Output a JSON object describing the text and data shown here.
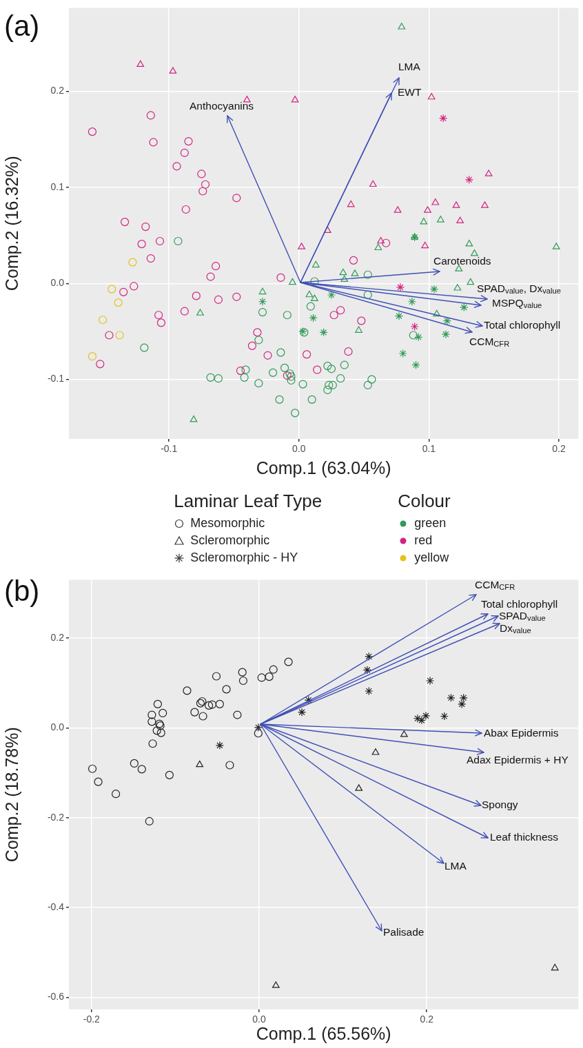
{
  "chart_data": [
    {
      "type": "scatter",
      "title": "(a)",
      "xlabel": "Comp.1 (63.04%)",
      "ylabel": "Comp.2 (16.32%)",
      "xlim": [
        -0.177,
        0.215
      ],
      "ylim": [
        -0.162,
        0.287
      ],
      "xticks": [
        -0.1,
        {
          "value": 0,
          "label": "0.0"
        },
        0.1,
        0.2
      ],
      "yticks": [
        -0.1,
        {
          "value": 0,
          "label": "0.0"
        },
        0.1,
        0.2
      ],
      "grid": true,
      "legend": "bottom",
      "legend_title": [
        "Laminar Leaf Type",
        "Colour"
      ],
      "series": [
        {
          "marker": "circle",
          "color": "#d2237f",
          "x": [
            -0.159,
            -0.114,
            -0.112,
            -0.085,
            -0.088,
            -0.094,
            -0.075,
            -0.072,
            -0.074,
            -0.048,
            -0.087,
            -0.134,
            -0.118,
            -0.121,
            -0.107,
            -0.114,
            -0.127,
            -0.135,
            -0.064,
            -0.068,
            -0.079,
            -0.062,
            -0.048,
            -0.014,
            -0.108,
            -0.106,
            -0.088,
            -0.146,
            -0.153,
            -0.032,
            -0.036,
            -0.024,
            0.006,
            -0.045,
            -0.009,
            0.014,
            0.067,
            0.042,
            0.032,
            0.027,
            0.048,
            0.038
          ],
          "values": [
            0.158,
            0.175,
            0.147,
            0.148,
            0.136,
            0.122,
            0.114,
            0.103,
            0.096,
            0.089,
            0.077,
            0.064,
            0.059,
            0.041,
            0.044,
            0.026,
            -0.003,
            -0.009,
            0.018,
            0.007,
            -0.013,
            -0.017,
            -0.014,
            0.006,
            -0.033,
            -0.041,
            -0.029,
            -0.054,
            -0.084,
            -0.051,
            -0.065,
            -0.075,
            -0.074,
            -0.091,
            -0.096,
            -0.09,
            0.042,
            0.024,
            -0.028,
            -0.033,
            -0.039,
            -0.071
          ]
        },
        {
          "marker": "circle",
          "color": "#e3c21c",
          "x": [
            -0.128,
            -0.144,
            -0.139,
            -0.151,
            -0.138,
            -0.159
          ],
          "values": [
            0.022,
            -0.006,
            -0.02,
            -0.038,
            -0.054,
            -0.076
          ]
        },
        {
          "marker": "circle",
          "color": "#2f9a57",
          "x": [
            -0.093,
            -0.028,
            -0.009,
            0.012,
            0.009,
            0.004,
            -0.031,
            -0.014,
            -0.119,
            -0.041,
            -0.042,
            -0.068,
            -0.062,
            -0.031,
            -0.02,
            -0.011,
            -0.007,
            -0.006,
            -0.006,
            0.003,
            -0.015,
            0.01,
            -0.003,
            0.053,
            0.053,
            0.088,
            0.022,
            0.025,
            0.035,
            0.032,
            0.023,
            0.026,
            0.022,
            0.053,
            0.056
          ],
          "values": [
            0.044,
            -0.03,
            -0.033,
            0.002,
            -0.024,
            -0.051,
            -0.059,
            -0.072,
            -0.067,
            -0.09,
            -0.098,
            -0.098,
            -0.099,
            -0.104,
            -0.093,
            -0.088,
            -0.094,
            -0.097,
            -0.101,
            -0.105,
            -0.121,
            -0.121,
            -0.135,
            0.009,
            -0.012,
            -0.054,
            -0.086,
            -0.089,
            -0.085,
            -0.099,
            -0.106,
            -0.106,
            -0.111,
            -0.106,
            -0.1
          ]
        },
        {
          "marker": "triangle",
          "color": "#d2237f",
          "x": [
            -0.122,
            -0.097,
            -0.04,
            -0.003,
            0.102,
            0.057,
            0.04,
            0.076,
            0.099,
            0.105,
            0.121,
            0.143,
            0.146,
            0.124,
            0.002,
            0.022,
            0.063,
            0.097
          ],
          "values": [
            0.228,
            0.221,
            0.191,
            0.191,
            0.194,
            0.103,
            0.082,
            0.076,
            0.076,
            0.084,
            0.081,
            0.081,
            0.114,
            0.065,
            0.038,
            0.055,
            0.044,
            0.039
          ]
        },
        {
          "marker": "triangle",
          "color": "#2f9a57",
          "x": [
            0.079,
            0.096,
            0.109,
            0.089,
            0.061,
            0.013,
            0.034,
            0.043,
            0.035,
            -0.005,
            0.008,
            0.012,
            0.131,
            0.135,
            0.198,
            0.123,
            0.132,
            0.122,
            0.106,
            0.046,
            -0.028,
            -0.076,
            -0.081
          ],
          "values": [
            0.267,
            0.064,
            0.066,
            0.048,
            0.037,
            0.019,
            0.011,
            0.01,
            0.004,
            0.001,
            -0.012,
            -0.016,
            0.041,
            0.031,
            0.038,
            0.015,
            0.001,
            -0.005,
            -0.032,
            -0.049,
            -0.009,
            -0.031,
            -0.142
          ]
        },
        {
          "marker": "cross",
          "color": "#2f9a57",
          "x": [
            0.089,
            0.025,
            0.011,
            0.003,
            0.019,
            0.087,
            0.104,
            0.127,
            0.077,
            0.114,
            0.113,
            0.092,
            0.08,
            0.09,
            -0.028
          ],
          "values": [
            0.048,
            -0.012,
            -0.036,
            -0.05,
            -0.051,
            -0.019,
            -0.006,
            -0.025,
            -0.034,
            -0.039,
            -0.053,
            -0.056,
            -0.073,
            -0.085,
            -0.019
          ]
        },
        {
          "marker": "cross",
          "color": "#d2237f",
          "x": [
            0.111,
            0.131,
            0.078,
            0.089
          ],
          "values": [
            0.172,
            0.108,
            -0.004,
            -0.045
          ]
        },
        {
          "name": "Mesomorphic",
          "marker": "circle",
          "color": "#333333"
        },
        {
          "name": "Scleromorphic",
          "marker": "triangle",
          "color": "#333333"
        },
        {
          "name": "Scleromorphic - HY",
          "marker": "cross",
          "color": "#333333"
        },
        {
          "name": "green",
          "color": "#2f9a57"
        },
        {
          "name": "red",
          "color": "#d2237f"
        },
        {
          "name": "yellow",
          "color": "#e3c21c"
        }
      ],
      "annotations": [
        "Anthocyanins",
        "LMA",
        "EWT",
        "Carotenoids",
        "SPAD$_{value}$, Dx$_{value}$",
        "MSPQ$_{value}$",
        "Total chlorophyll",
        "CCM$_{CFR}$"
      ]
    },
    {
      "type": "scatter",
      "title": "(b)",
      "xlabel": "Comp.1 (65.56%)",
      "ylabel": "Comp.2 (18.78%)",
      "xlim": [
        -0.227,
        0.381
      ],
      "ylim": [
        -0.627,
        0.33
      ],
      "xticks": [
        -0.2,
        {
          "value": 0,
          "label": "0.0"
        },
        0.2
      ],
      "yticks": [
        -0.6,
        -0.4,
        -0.2,
        {
          "value": 0,
          "label": "0.0"
        },
        0.2
      ],
      "grid": true,
      "series": [
        {
          "marker": "circle",
          "color": "#222222",
          "x": [
            -0.199,
            -0.192,
            -0.171,
            -0.149,
            -0.14,
            -0.107,
            -0.131,
            -0.127,
            -0.121,
            -0.128,
            -0.115,
            -0.128,
            -0.119,
            -0.118,
            -0.122,
            -0.117,
            -0.086,
            -0.077,
            -0.067,
            -0.07,
            -0.068,
            -0.06,
            -0.056,
            -0.047,
            -0.051,
            -0.039,
            -0.026,
            -0.02,
            -0.019,
            0.003,
            0.012,
            0.017,
            0.035,
            -0.001,
            -0.035
          ],
          "values": [
            -0.091,
            -0.12,
            -0.147,
            -0.079,
            -0.092,
            -0.105,
            -0.208,
            -0.035,
            0.053,
            0.029,
            0.033,
            0.014,
            0.009,
            0.005,
            -0.006,
            -0.011,
            0.083,
            0.035,
            0.026,
            0.055,
            0.059,
            0.05,
            0.052,
            0.053,
            0.115,
            0.086,
            0.029,
            0.124,
            0.105,
            0.112,
            0.114,
            0.13,
            0.147,
            -0.012,
            -0.083
          ]
        },
        {
          "marker": "triangle",
          "color": "#222222",
          "x": [
            -0.071,
            0.173,
            0.139,
            0.119,
            0.353,
            0.02
          ],
          "values": [
            -0.082,
            -0.015,
            -0.055,
            -0.135,
            -0.535,
            -0.574
          ]
        },
        {
          "marker": "cross",
          "color": "#222222",
          "x": [
            -0.047,
            -0.001,
            0.059,
            0.051,
            0.131,
            0.129,
            0.131,
            0.204,
            0.229,
            0.244,
            0.242,
            0.221,
            0.199,
            0.189,
            0.194
          ],
          "values": [
            -0.039,
            0.001,
            0.062,
            0.035,
            0.159,
            0.129,
            0.082,
            0.105,
            0.067,
            0.067,
            0.053,
            0.026,
            0.027,
            0.021,
            0.017
          ]
        }
      ],
      "annotations": [
        "CCM$_{CFR}$",
        "Total chlorophyll",
        "SPAD$_{value}$",
        "Dx$_{value}$",
        "Abax Epidermis",
        "Adax Epidermis + HY",
        "Spongy",
        "Leaf thickness",
        "LMA",
        "Palisade"
      ]
    }
  ]
}
